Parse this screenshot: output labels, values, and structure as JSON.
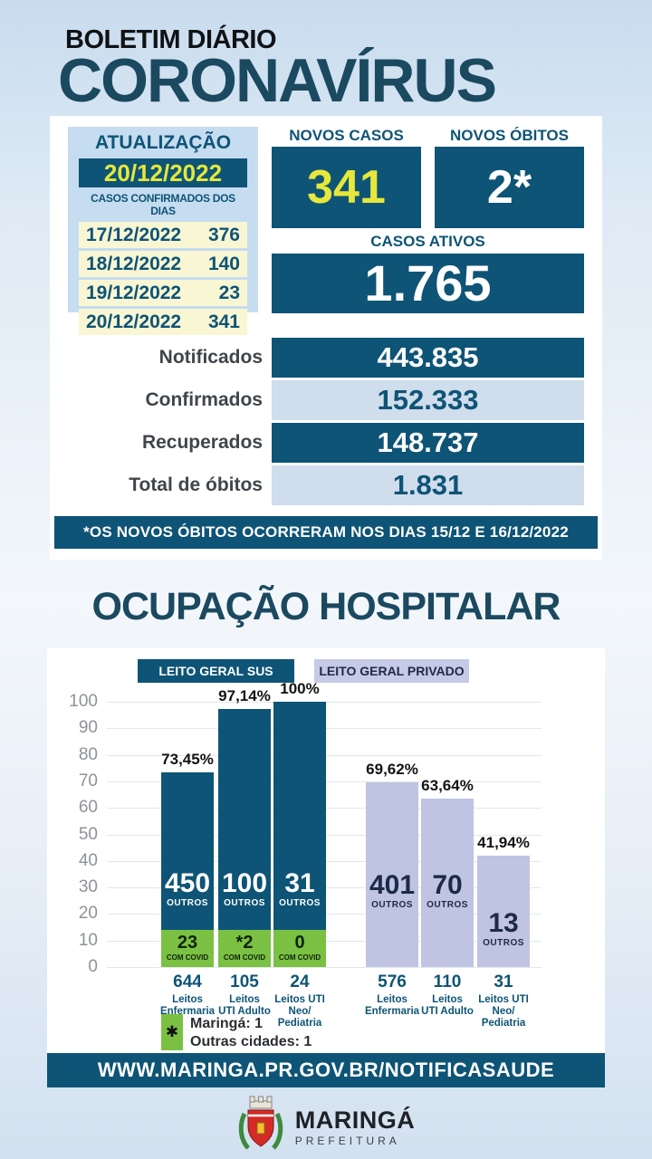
{
  "header": {
    "kicker": "BOLETIM DIÁRIO",
    "title": "CORONAVÍRUS"
  },
  "update": {
    "title": "ATUALIZAÇÃO",
    "date": "20/12/2022",
    "subtitle": "CASOS CONFIRMADOS DOS DIAS",
    "rows": [
      {
        "date": "17/12/2022",
        "value": "376"
      },
      {
        "date": "18/12/2022",
        "value": "140"
      },
      {
        "date": "19/12/2022",
        "value": "23"
      },
      {
        "date": "20/12/2022",
        "value": "341"
      }
    ]
  },
  "highlights": {
    "novos_casos": {
      "label": "NOVOS CASOS",
      "value": "341"
    },
    "novos_obitos": {
      "label": "NOVOS ÓBITOS",
      "value": "2*"
    },
    "casos_ativos": {
      "label": "CASOS ATIVOS",
      "value": "1.765"
    }
  },
  "totals": [
    {
      "label": "Notificados",
      "value": "443.835"
    },
    {
      "label": "Confirmados",
      "value": "152.333"
    },
    {
      "label": "Recuperados",
      "value": "148.737"
    },
    {
      "label": "Total de óbitos",
      "value": "1.831"
    }
  ],
  "note": "*OS NOVOS  ÓBITOS OCORRERAM NOS DIAS 15/12 E 16/12/2022",
  "chart_data": {
    "type": "bar",
    "title": "OCUPAÇÃO HOSPITALAR",
    "ylim": [
      0,
      100
    ],
    "yticks": [
      0,
      10,
      20,
      30,
      40,
      50,
      60,
      70,
      80,
      90,
      100
    ],
    "grid": true,
    "outros_label": "OUTROS",
    "com_covid_label": "COM COVID",
    "series": [
      {
        "name": "LEITO GERAL SUS",
        "bars": [
          {
            "category": "Leitos\nEnfermaria",
            "total": "644",
            "occupancy_pct": 73.45,
            "pct_label": "73,45%",
            "outros": "450",
            "com_covid": "23"
          },
          {
            "category": "Leitos\nUTI Adulto",
            "total": "105",
            "occupancy_pct": 97.14,
            "pct_label": "97,14%",
            "outros": "100",
            "com_covid": "*2"
          },
          {
            "category": "Leitos UTI\nNeo/\nPediatria",
            "total": "24",
            "occupancy_pct": 100,
            "pct_label": "100%",
            "outros": "31",
            "com_covid": "0"
          }
        ]
      },
      {
        "name": "LEITO GERAL PRIVADO",
        "bars": [
          {
            "category": "Leitos\nEnfermaria",
            "total": "576",
            "occupancy_pct": 69.62,
            "pct_label": "69,62%",
            "outros": "401"
          },
          {
            "category": "Leitos\nUTI Adulto",
            "total": "110",
            "occupancy_pct": 63.64,
            "pct_label": "63,64%",
            "outros": "70"
          },
          {
            "category": "Leitos UTI\nNeo/\nPediatria",
            "total": "31",
            "occupancy_pct": 41.94,
            "pct_label": "41,94%",
            "outros": "13"
          }
        ]
      }
    ],
    "legend": {
      "marker": "✱",
      "lines": [
        "Maringá: 1",
        "Outras cidades: 1"
      ]
    }
  },
  "footer": {
    "url": "WWW.MARINGA.PR.GOV.BR/NOTIFICASAUDE",
    "logo_title": "MARINGÁ",
    "logo_subtitle": "PREFEITURA"
  },
  "colors": {
    "dark_blue": "#0e5476",
    "navy_title": "#1b4960",
    "yellow": "#e6e73a",
    "pale_yellow": "#f9f6d4",
    "box_blue": "#c6dcf1",
    "light_row": "#cfddec",
    "lavender_header": "#c5cae6",
    "lavender_bar": "#bec4e2",
    "green": "#7ac143"
  }
}
